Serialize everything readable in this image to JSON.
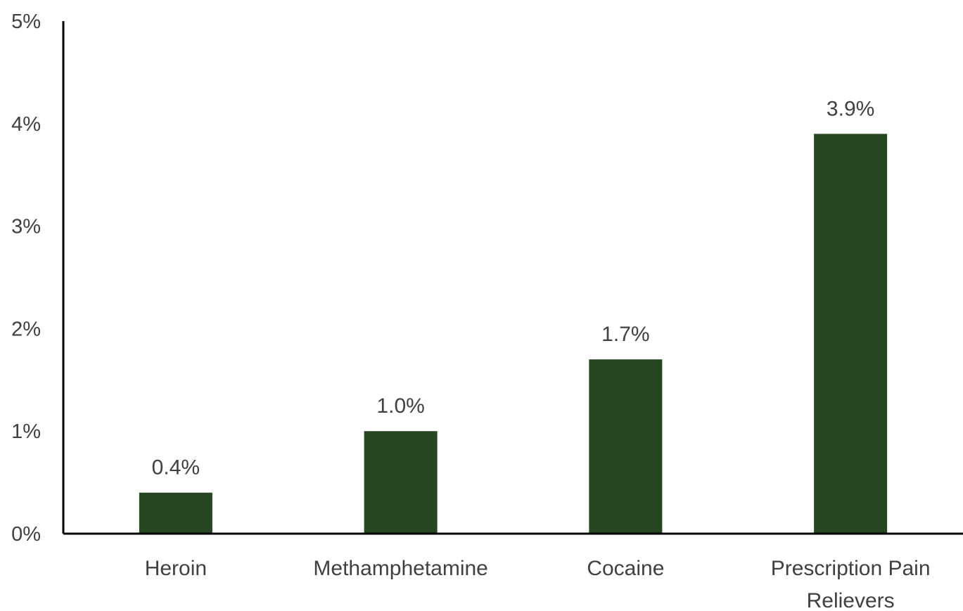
{
  "chart_data": {
    "type": "bar",
    "categories": [
      "Heroin",
      "Methamphetamine",
      "Cocaine",
      "Prescription Pain Relievers"
    ],
    "values": [
      0.4,
      1.0,
      1.7,
      3.9
    ],
    "data_labels": [
      "0.4%",
      "1.0%",
      "1.7%",
      "3.9%"
    ],
    "ylim": [
      0,
      5
    ],
    "yticks": [
      0,
      1,
      2,
      3,
      4,
      5
    ],
    "ytick_labels": [
      "0%",
      "1%",
      "2%",
      "3%",
      "4%",
      "5%"
    ],
    "title": "",
    "xlabel": "",
    "ylabel": "",
    "grid": false,
    "legend": "none",
    "colors": {
      "bar": "#254620",
      "axis": "#000000",
      "text": "#404040"
    }
  }
}
